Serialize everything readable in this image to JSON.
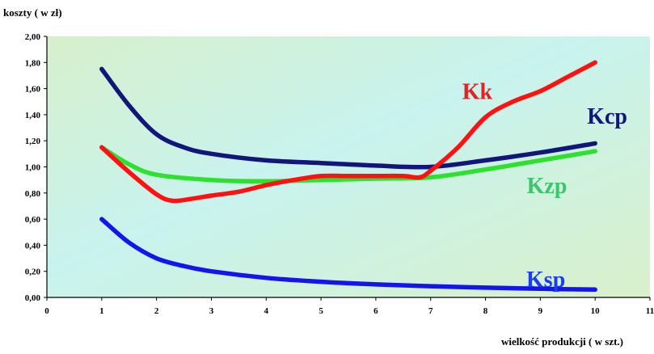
{
  "chart_data": {
    "type": "line",
    "title": "",
    "ylabel": "koszty ( w zł)",
    "xlabel": "wielkość produkcji ( w szt.)",
    "xlim": [
      0,
      11
    ],
    "ylim": [
      0,
      2
    ],
    "x_ticks": [
      "0",
      "1",
      "2",
      "3",
      "4",
      "5",
      "6",
      "7",
      "8",
      "9",
      "10",
      "11"
    ],
    "y_ticks": [
      "0,00",
      "0,20",
      "0,40",
      "0,60",
      "0,80",
      "1,00",
      "1,20",
      "1,40",
      "1,60",
      "1,80",
      "2,00"
    ],
    "grid": false,
    "colors": {
      "bg_top": "#d7f0cc",
      "bg_mid": "#c8f3ee",
      "bg_bottom": "#d9f0cb"
    },
    "series": [
      {
        "name": "Kk",
        "color": "#ff1111",
        "x": [
          1,
          1.5,
          2,
          2.3,
          2.7,
          3,
          3.5,
          4,
          4.5,
          5,
          5.5,
          6,
          6.5,
          6.8,
          7,
          7.5,
          8,
          8.5,
          9,
          9.5,
          10
        ],
        "y": [
          1.15,
          0.96,
          0.79,
          0.74,
          0.76,
          0.78,
          0.81,
          0.86,
          0.9,
          0.93,
          0.93,
          0.93,
          0.93,
          0.92,
          0.97,
          1.15,
          1.38,
          1.5,
          1.58,
          1.69,
          1.8
        ]
      },
      {
        "name": "Kcp",
        "color": "#12167a",
        "x": [
          1,
          1.5,
          2,
          2.5,
          3,
          4,
          5,
          6,
          7,
          8,
          9,
          10
        ],
        "y": [
          1.75,
          1.47,
          1.25,
          1.15,
          1.1,
          1.05,
          1.03,
          1.01,
          1.0,
          1.05,
          1.11,
          1.18
        ]
      },
      {
        "name": "Kzp",
        "color": "#2ee12e",
        "x": [
          1,
          1.5,
          2,
          3,
          4,
          5,
          6,
          7,
          8,
          9,
          10
        ],
        "y": [
          1.15,
          1.02,
          0.94,
          0.9,
          0.89,
          0.9,
          0.91,
          0.92,
          0.98,
          1.05,
          1.12
        ]
      },
      {
        "name": "Ksp",
        "color": "#1414ee",
        "x": [
          1,
          1.5,
          2,
          2.5,
          3,
          4,
          5,
          6,
          7,
          8,
          9,
          10
        ],
        "y": [
          0.6,
          0.42,
          0.3,
          0.24,
          0.2,
          0.15,
          0.12,
          0.1,
          0.086,
          0.075,
          0.066,
          0.06
        ]
      }
    ],
    "series_labels": [
      {
        "text": "Kk",
        "color": "#e42020",
        "x": 7.85,
        "y": 1.52
      },
      {
        "text": "Kcp",
        "color": "#12167a",
        "x": 10.22,
        "y": 1.33
      },
      {
        "text": "Kzp",
        "color": "#3cc56a",
        "x": 9.12,
        "y": 0.8
      },
      {
        "text": "Ksp",
        "color": "#1c3cf0",
        "x": 9.1,
        "y": 0.08
      }
    ]
  }
}
